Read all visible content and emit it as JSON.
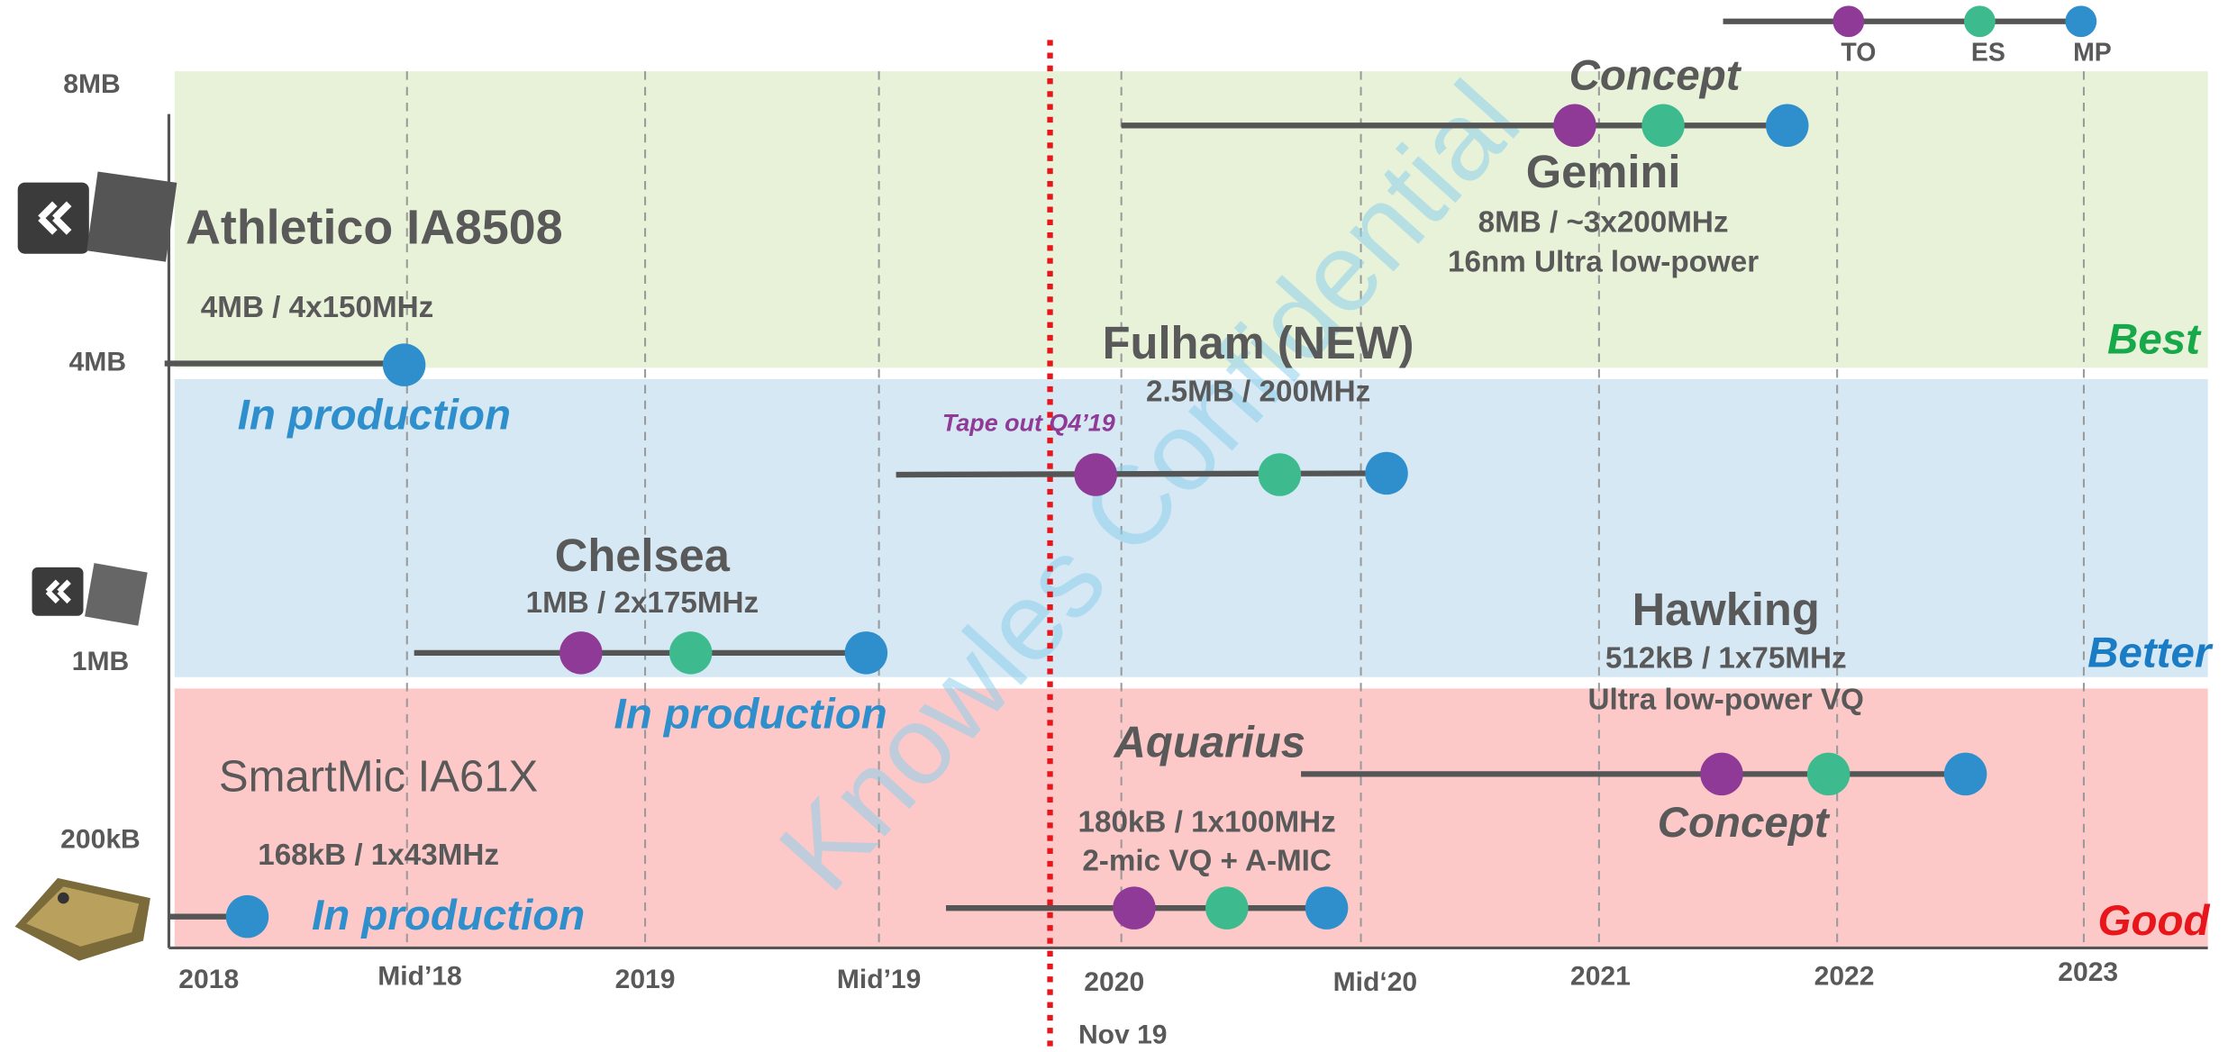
{
  "legend": {
    "items": [
      "TO",
      "ES",
      "MP"
    ]
  },
  "y_labels": [
    "8MB",
    "4MB",
    "1MB",
    "200kB"
  ],
  "x_labels": [
    "2018",
    "Mid’18",
    "2019",
    "Mid’19",
    "2020",
    "Mid‘20",
    "2021",
    "2022",
    "2023"
  ],
  "marker": "Nov 19",
  "watermark": "Knowles Confidential",
  "tiers": [
    "Best",
    "Better",
    "Good"
  ],
  "products": {
    "athletico": {
      "name": "Athletico IA8508",
      "spec": "4MB / 4x150MHz",
      "status": "In production"
    },
    "gemini": {
      "status": "Concept",
      "name": "Gemini",
      "spec": "8MB / ~3x200MHz",
      "spec2": "16nm Ultra low-power"
    },
    "fulham": {
      "name": "Fulham (NEW)",
      "spec": "2.5MB / 200MHz",
      "note": "Tape out Q4’19"
    },
    "chelsea": {
      "name": "Chelsea",
      "spec": "1MB / 2x175MHz",
      "status": "In production"
    },
    "hawking": {
      "name": "Hawking",
      "spec": "512kB  /  1x75MHz",
      "spec2": "Ultra low-power VQ",
      "status": "Concept"
    },
    "aquarius": {
      "name": "Aquarius",
      "spec": "180kB / 1x100MHz",
      "spec2": "2-mic VQ + A-MIC"
    },
    "smartmic": {
      "name": "SmartMic IA61X",
      "spec": "168kB / 1x43MHz",
      "status": "In production"
    }
  }
}
